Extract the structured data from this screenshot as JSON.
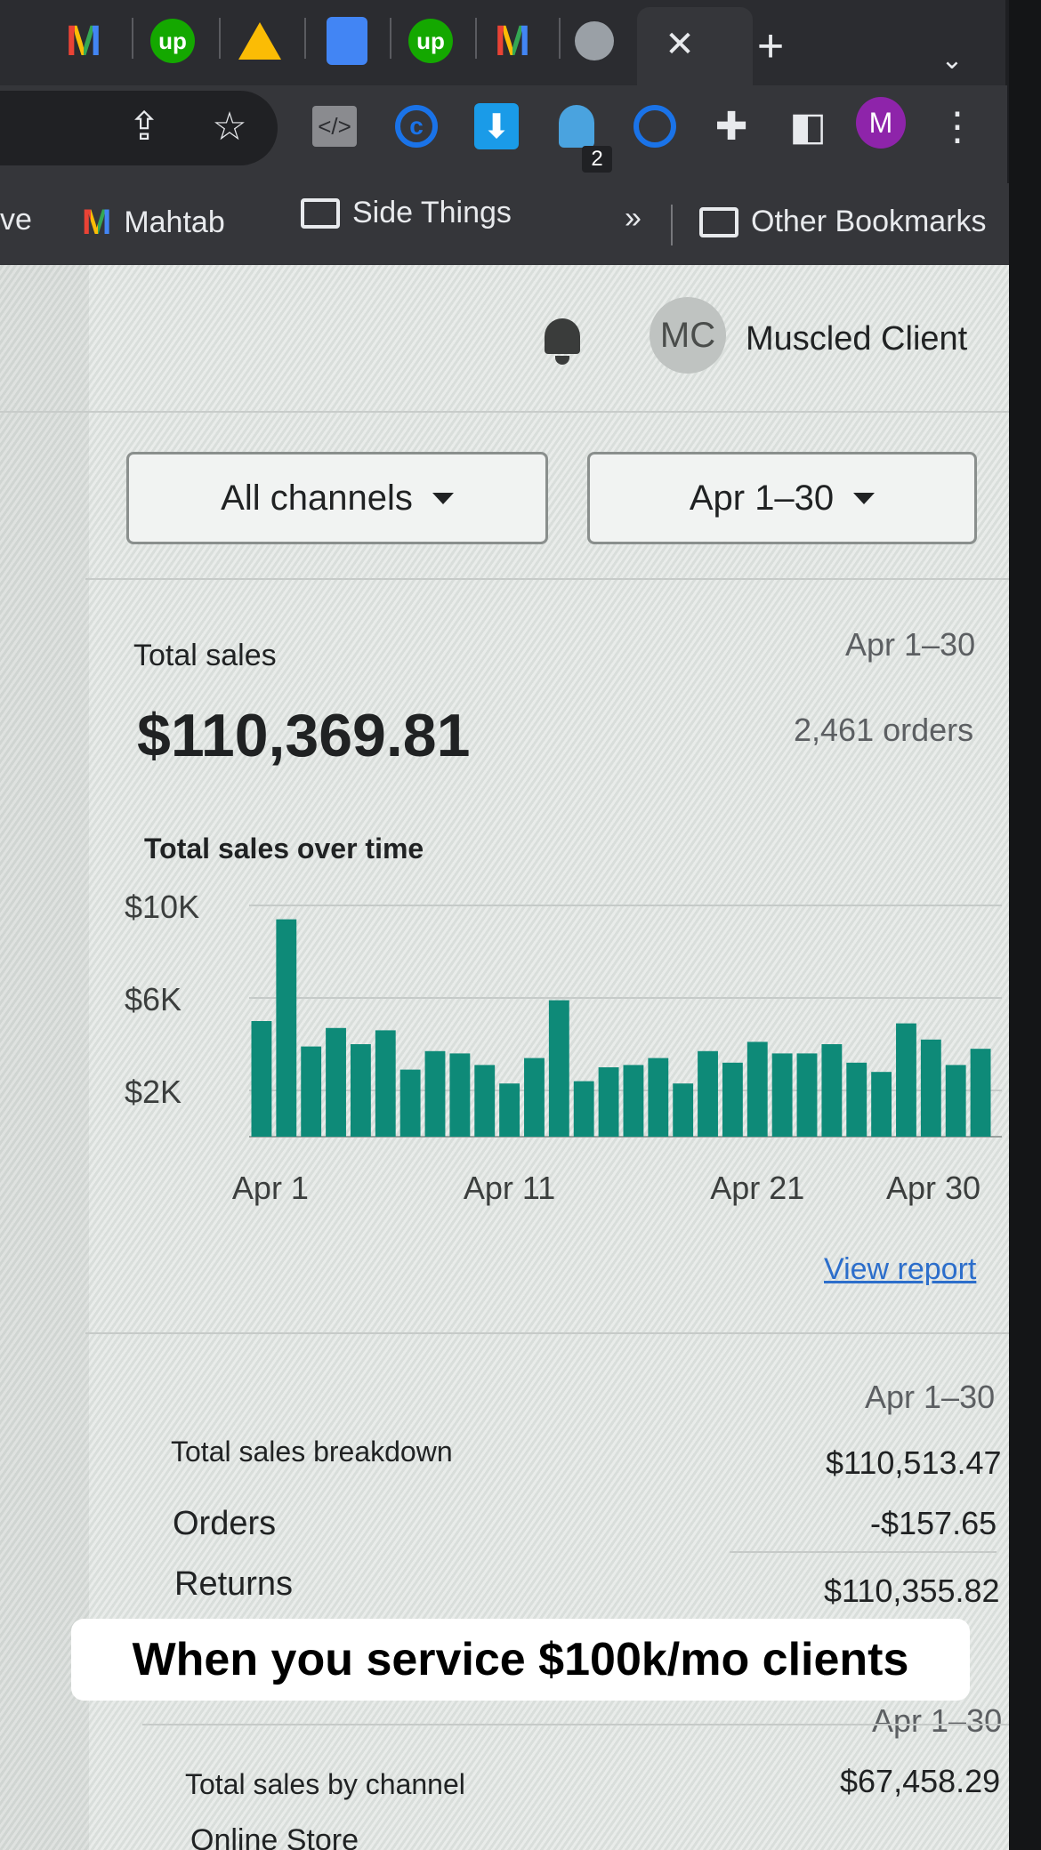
{
  "browser": {
    "tabs": [
      {
        "icon": "gmail-icon",
        "glyph": "M"
      },
      {
        "icon": "upwork-icon",
        "glyph": "up"
      },
      {
        "icon": "google-drive-icon",
        "glyph": ""
      },
      {
        "icon": "google-docs-icon",
        "glyph": ""
      },
      {
        "icon": "upwork-icon",
        "glyph": "up"
      },
      {
        "icon": "gmail-icon",
        "glyph": "M"
      },
      {
        "icon": "globe-icon",
        "glyph": ""
      }
    ],
    "active_tab_close_glyph": "✕",
    "new_tab_glyph": "+",
    "tab_list_glyph": "⌄",
    "extension_badge": "2",
    "profile_initial": "M",
    "menu_glyph": "⋮",
    "bookmarks": {
      "partial_item": "ve",
      "mahtab": "Mahtab",
      "side_things": "Side Things",
      "overflow": "»",
      "other": "Other Bookmarks"
    }
  },
  "header": {
    "avatar_initials": "MC",
    "user_name": "Muscled Client"
  },
  "filters": {
    "channel": "All channels",
    "date_range": "Apr 1–30"
  },
  "summary": {
    "title": "Total sales",
    "range": "Apr 1–30",
    "total": "$110,369.81",
    "orders": "2,461 orders",
    "chart_title": "Total sales over time",
    "view_report": "View report"
  },
  "chart_data": {
    "type": "bar",
    "title": "Total sales over time",
    "xlabel": "",
    "ylabel": "",
    "y_ticks": [
      2000,
      6000,
      10000
    ],
    "y_tick_labels": [
      "$2K",
      "$6K",
      "$10K"
    ],
    "ylim": [
      0,
      10000
    ],
    "x_tick_labels": [
      "Apr 1",
      "Apr 11",
      "Apr 21",
      "Apr 30"
    ],
    "categories": [
      "Apr 1",
      "Apr 2",
      "Apr 3",
      "Apr 4",
      "Apr 5",
      "Apr 6",
      "Apr 7",
      "Apr 8",
      "Apr 9",
      "Apr 10",
      "Apr 11",
      "Apr 12",
      "Apr 13",
      "Apr 14",
      "Apr 15",
      "Apr 16",
      "Apr 17",
      "Apr 18",
      "Apr 19",
      "Apr 20",
      "Apr 21",
      "Apr 22",
      "Apr 23",
      "Apr 24",
      "Apr 25",
      "Apr 26",
      "Apr 27",
      "Apr 28",
      "Apr 29",
      "Apr 30"
    ],
    "values": [
      5000,
      9400,
      3900,
      4700,
      4000,
      4600,
      2900,
      3700,
      3600,
      3100,
      2300,
      3400,
      5900,
      2400,
      3000,
      3100,
      3400,
      2300,
      3700,
      3200,
      4100,
      3600,
      3600,
      4000,
      3200,
      2800,
      4900,
      4200,
      3100,
      3800
    ],
    "grid": true,
    "color": "#0e8a78"
  },
  "breakdown": {
    "range": "Apr 1–30",
    "title": "Total sales breakdown",
    "orders_label": "Orders",
    "orders_value": "$110,513.47",
    "returns_label": "Returns",
    "returns_value": "-$157.65",
    "net_value": "$110,355.82"
  },
  "by_channel": {
    "range": "Apr 1–30",
    "title": "Total sales by channel",
    "value": "$67,458.29",
    "first_channel": "Online Store"
  },
  "caption": "When you service $100k/mo clients",
  "colors": {
    "accent": "#0e8a78",
    "link": "#2c6ecb",
    "chrome_dark": "#35363a"
  }
}
